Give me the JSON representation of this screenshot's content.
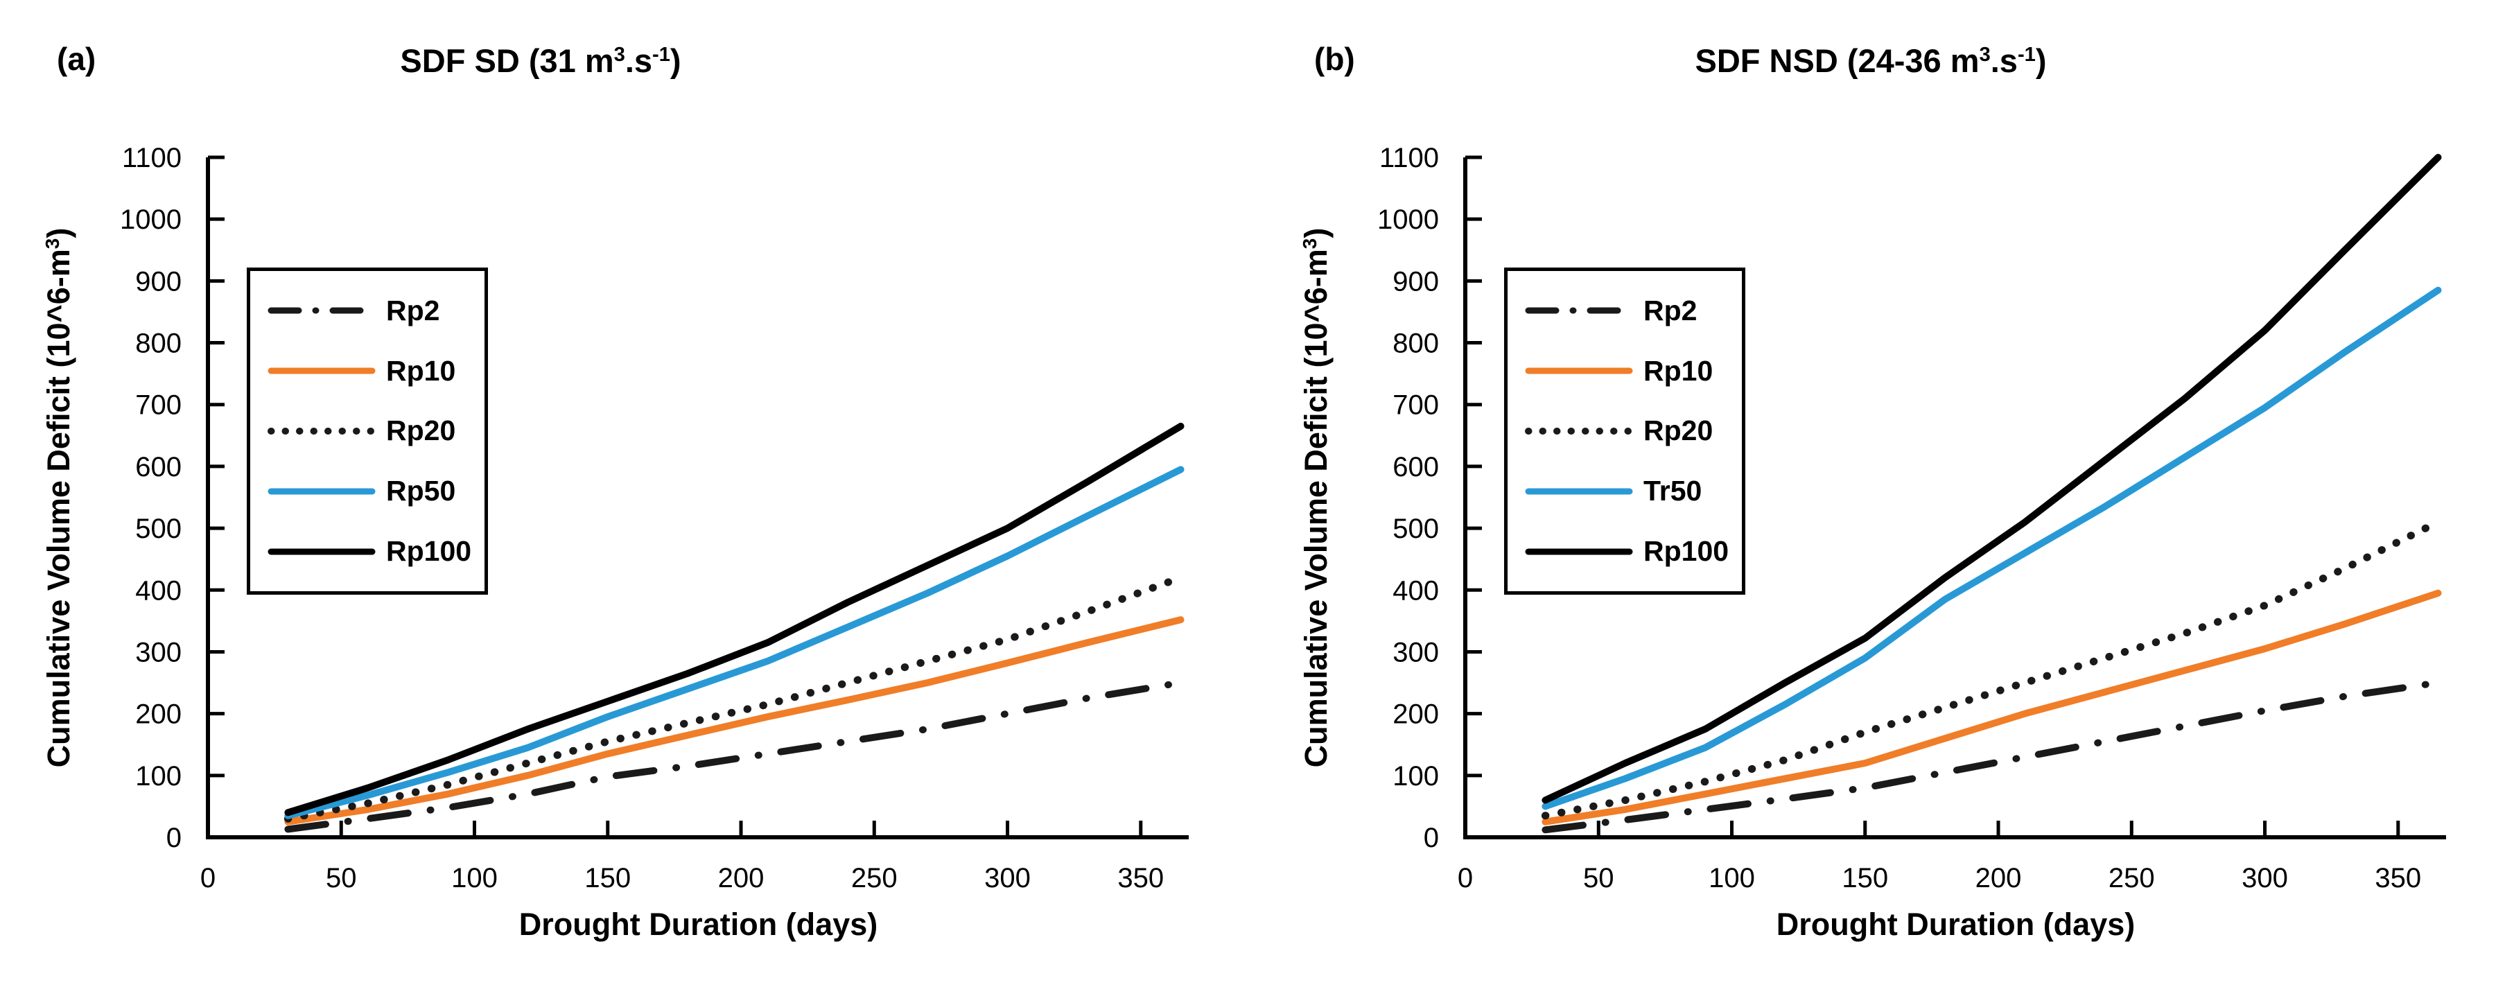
{
  "panels": [
    {
      "tag": "(a)",
      "title_parts": {
        "pre": "SDF SD (31 m",
        "sup1": "3",
        "mid": ".s",
        "sup2": "-1",
        "post": ")"
      }
    },
    {
      "tag": "(b)",
      "title_parts": {
        "pre": "SDF NSD (24-36 m",
        "sup1": "3",
        "mid": ".s",
        "sup2": "-1",
        "post": ")"
      }
    }
  ],
  "chart_data": [
    {
      "type": "line",
      "title": "SDF SD (31 m^3.s^-1)",
      "xlabel": "Drought Duration (days)",
      "ylabel": "Cumulative Volume Deficit (10^6-m^3)",
      "ylabel_parts": {
        "pre": "Cumulative Volume Deficit  (10^6-m",
        "sup": "3",
        "post": ")"
      },
      "xlim": [
        0,
        368
      ],
      "ylim": [
        0,
        1100
      ],
      "x_ticks": [
        0,
        50,
        100,
        150,
        200,
        250,
        300,
        350
      ],
      "y_ticks": [
        0,
        100,
        200,
        300,
        400,
        500,
        600,
        700,
        800,
        900,
        1000,
        1100
      ],
      "grid": false,
      "legend_position": "upper-left",
      "x": [
        30,
        60,
        90,
        120,
        150,
        180,
        210,
        240,
        270,
        300,
        330,
        365
      ],
      "series": [
        {
          "name": "Rp2",
          "color": "#1a1a1a",
          "style": "dashdot",
          "values": [
            13,
            30,
            48,
            70,
            98,
            115,
            135,
            155,
            175,
            200,
            225,
            250
          ]
        },
        {
          "name": "Rp10",
          "color": "#f07d28",
          "style": "solid",
          "values": [
            25,
            45,
            70,
            100,
            135,
            165,
            195,
            222,
            250,
            282,
            315,
            352
          ]
        },
        {
          "name": "Rp20",
          "color": "#1a1a1a",
          "style": "dotted",
          "values": [
            30,
            55,
            85,
            120,
            155,
            185,
            215,
            250,
            285,
            320,
            365,
            420
          ]
        },
        {
          "name": "Rp50",
          "color": "#2999d6",
          "style": "solid",
          "values": [
            35,
            68,
            105,
            145,
            195,
            240,
            285,
            340,
            395,
            455,
            520,
            595
          ]
        },
        {
          "name": "Rp100",
          "color": "#000000",
          "style": "solid",
          "values": [
            40,
            80,
            125,
            175,
            220,
            265,
            315,
            380,
            440,
            500,
            575,
            665
          ]
        }
      ]
    },
    {
      "type": "line",
      "title": "SDF NSD (24-36 m^3.s^-1)",
      "xlabel": "Drought Duration (days)",
      "ylabel": "Cumulative Volume Deficit (10^6-m^3)",
      "ylabel_parts": {
        "pre": "Cumulative Volume Deficit  (10^6-m",
        "sup": "3",
        "post": ")"
      },
      "xlim": [
        0,
        368
      ],
      "ylim": [
        0,
        1100
      ],
      "x_ticks": [
        0,
        50,
        100,
        150,
        200,
        250,
        300,
        350
      ],
      "y_ticks": [
        0,
        100,
        200,
        300,
        400,
        500,
        600,
        700,
        800,
        900,
        1000,
        1100
      ],
      "grid": false,
      "legend_position": "upper-left",
      "x": [
        30,
        60,
        90,
        120,
        150,
        180,
        210,
        240,
        270,
        300,
        330,
        365
      ],
      "series": [
        {
          "name": "Rp2",
          "color": "#1a1a1a",
          "style": "dashdot",
          "values": [
            12,
            28,
            45,
            62,
            80,
            105,
            130,
            155,
            180,
            205,
            228,
            250
          ]
        },
        {
          "name": "Rp10",
          "color": "#f07d28",
          "style": "solid",
          "values": [
            25,
            45,
            70,
            95,
            120,
            160,
            200,
            235,
            270,
            305,
            345,
            395
          ]
        },
        {
          "name": "Rp20",
          "color": "#1a1a1a",
          "style": "dotted",
          "values": [
            35,
            60,
            90,
            125,
            170,
            210,
            250,
            290,
            330,
            375,
            435,
            510
          ]
        },
        {
          "name": "Tr50",
          "color": "#2999d6",
          "style": "solid",
          "values": [
            50,
            95,
            145,
            215,
            290,
            385,
            460,
            535,
            615,
            695,
            785,
            885
          ]
        },
        {
          "name": "Rp100",
          "color": "#000000",
          "style": "solid",
          "values": [
            60,
            120,
            175,
            250,
            322,
            420,
            510,
            610,
            710,
            820,
            950,
            1100
          ]
        }
      ]
    }
  ]
}
